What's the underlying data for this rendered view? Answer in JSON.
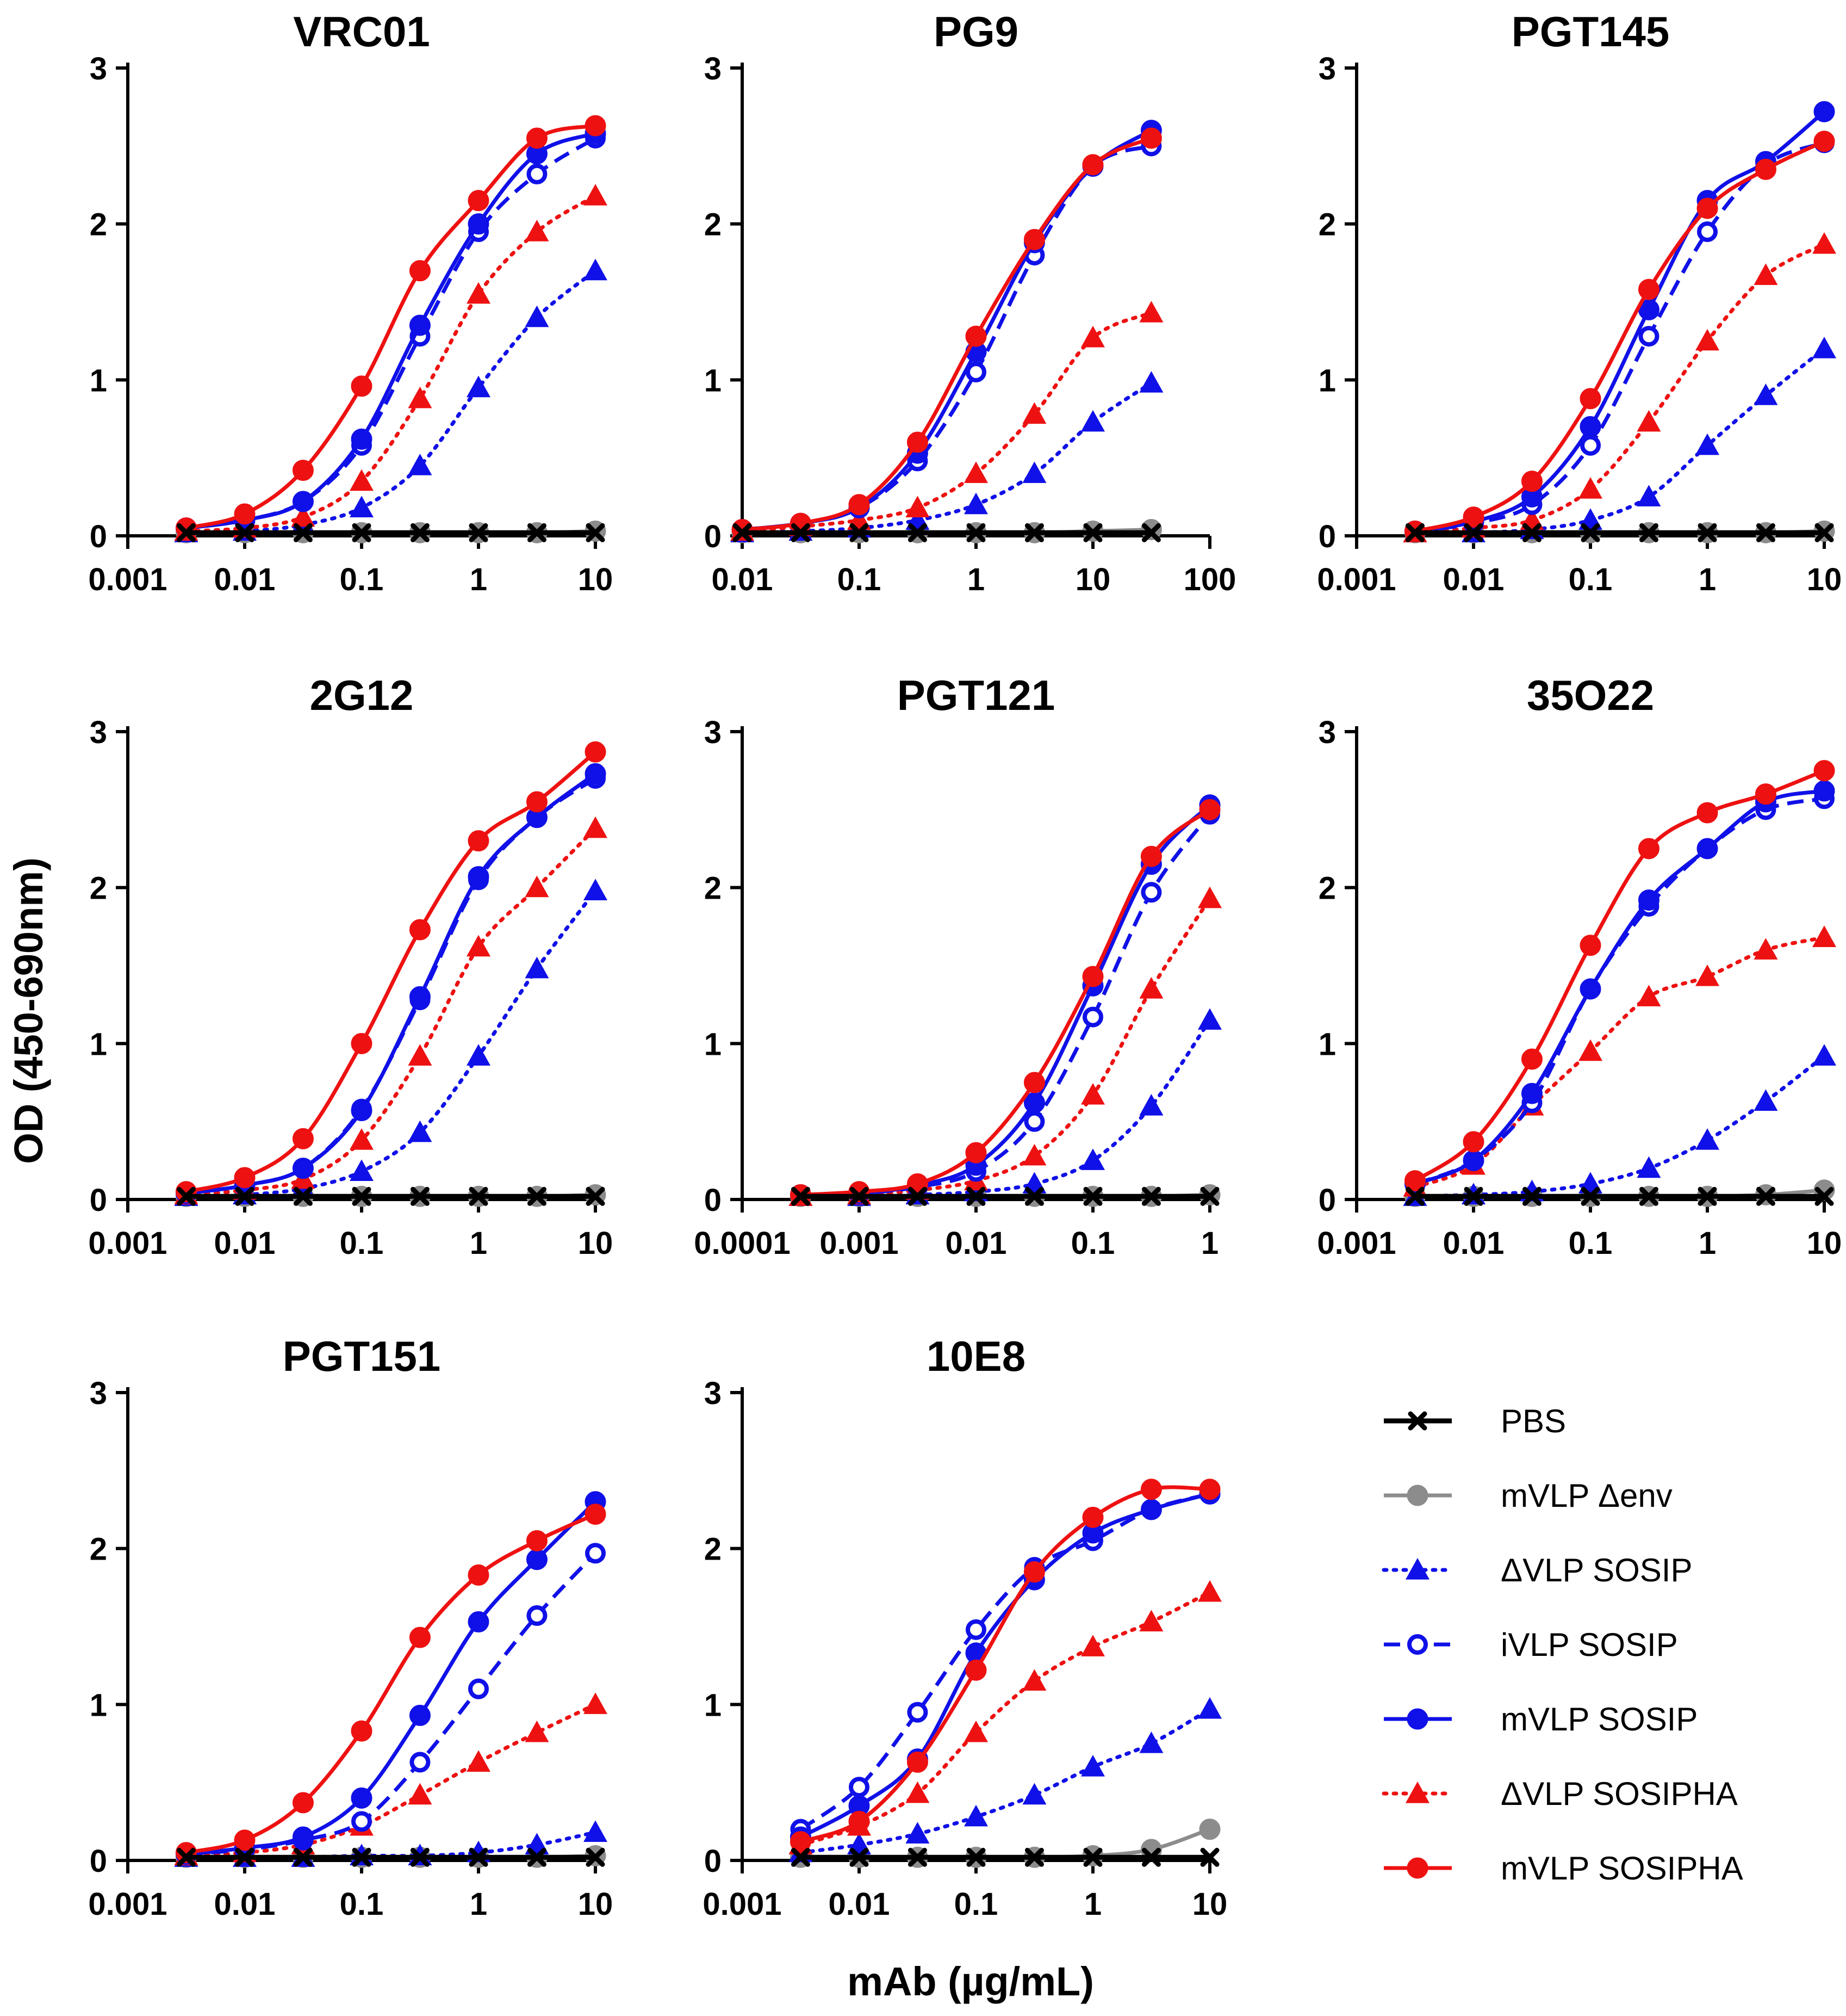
{
  "figure": {
    "ylabel": "OD (450-690nm)",
    "xlabel": "mAb (µg/mL)"
  },
  "legend": [
    {
      "key": "pbs",
      "label": "PBS"
    },
    {
      "key": "mvlp_denv",
      "label": "mVLP Δenv"
    },
    {
      "key": "dvlp_sosip",
      "label": "ΔVLP SOSIP"
    },
    {
      "key": "ivlp_sosip",
      "label": "iVLP SOSIP"
    },
    {
      "key": "mvlp_sosip",
      "label": "mVLP SOSIP"
    },
    {
      "key": "dvlp_sosipha",
      "label": "ΔVLP SOSIPHA"
    },
    {
      "key": "mvlp_sosipha",
      "label": "mVLP SOSIPHA"
    }
  ],
  "styles": {
    "pbs": {
      "color": "#000000",
      "marker": "x",
      "dash": "solid"
    },
    "mvlp_denv": {
      "color": "#8c8c8c",
      "marker": "circle",
      "dash": "solid"
    },
    "dvlp_sosip": {
      "color": "#1010e8",
      "marker": "triangle",
      "dash": "dotted"
    },
    "ivlp_sosip": {
      "color": "#1010e8",
      "marker": "open-circle",
      "dash": "dashed"
    },
    "mvlp_sosip": {
      "color": "#1010e8",
      "marker": "circle",
      "dash": "solid"
    },
    "dvlp_sosipha": {
      "color": "#ee1111",
      "marker": "triangle",
      "dash": "dotted"
    },
    "mvlp_sosipha": {
      "color": "#ee1111",
      "marker": "circle",
      "dash": "solid"
    }
  },
  "chart_data": [
    {
      "type": "line",
      "title": "VRC01",
      "x_scale": "log",
      "xticks": [
        "0.001",
        "0.01",
        "0.1",
        "1",
        "10"
      ],
      "xlim": [
        0.001,
        10
      ],
      "yticks": [
        "0",
        "1",
        "2",
        "3"
      ],
      "ylim": [
        0,
        3
      ],
      "x": [
        0.00316,
        0.01,
        0.0316,
        0.1,
        0.316,
        1,
        3.16,
        10
      ],
      "series": [
        {
          "key": "pbs",
          "values": [
            0.02,
            0.02,
            0.02,
            0.02,
            0.02,
            0.02,
            0.02,
            0.02
          ]
        },
        {
          "key": "mvlp_denv",
          "values": [
            0.02,
            0.02,
            0.02,
            0.02,
            0.02,
            0.02,
            0.02,
            0.03
          ]
        },
        {
          "key": "dvlp_sosip",
          "values": [
            0.02,
            0.03,
            0.07,
            0.18,
            0.45,
            0.95,
            1.4,
            1.7
          ]
        },
        {
          "key": "ivlp_sosip",
          "values": [
            0.05,
            0.1,
            0.22,
            0.58,
            1.28,
            1.95,
            2.32,
            2.55
          ]
        },
        {
          "key": "mvlp_sosip",
          "values": [
            0.05,
            0.1,
            0.22,
            0.62,
            1.35,
            2.0,
            2.45,
            2.58
          ]
        },
        {
          "key": "dvlp_sosipha",
          "values": [
            0.03,
            0.05,
            0.12,
            0.35,
            0.88,
            1.55,
            1.95,
            2.18
          ]
        },
        {
          "key": "mvlp_sosipha",
          "values": [
            0.05,
            0.14,
            0.42,
            0.96,
            1.7,
            2.15,
            2.55,
            2.63
          ]
        }
      ]
    },
    {
      "type": "line",
      "title": "PG9",
      "x_scale": "log",
      "xticks": [
        "0.01",
        "0.1",
        "1",
        "10",
        "100"
      ],
      "xlim": [
        0.01,
        100
      ],
      "yticks": [
        "0",
        "1",
        "2",
        "3"
      ],
      "ylim": [
        0,
        3
      ],
      "x": [
        0.01,
        0.0316,
        0.1,
        0.316,
        1,
        3.16,
        10,
        31.6
      ],
      "series": [
        {
          "key": "pbs",
          "values": [
            0.02,
            0.02,
            0.02,
            0.02,
            0.02,
            0.02,
            0.02,
            0.02
          ]
        },
        {
          "key": "mvlp_denv",
          "values": [
            0.02,
            0.02,
            0.02,
            0.02,
            0.02,
            0.02,
            0.03,
            0.04
          ]
        },
        {
          "key": "dvlp_sosip",
          "values": [
            0.02,
            0.03,
            0.05,
            0.1,
            0.2,
            0.4,
            0.73,
            0.98
          ]
        },
        {
          "key": "ivlp_sosip",
          "values": [
            0.04,
            0.08,
            0.18,
            0.48,
            1.05,
            1.8,
            2.37,
            2.5
          ]
        },
        {
          "key": "mvlp_sosip",
          "values": [
            0.04,
            0.08,
            0.18,
            0.53,
            1.18,
            1.88,
            2.37,
            2.6
          ]
        },
        {
          "key": "dvlp_sosipha",
          "values": [
            0.03,
            0.06,
            0.1,
            0.18,
            0.4,
            0.78,
            1.27,
            1.43
          ]
        },
        {
          "key": "mvlp_sosipha",
          "values": [
            0.04,
            0.08,
            0.2,
            0.6,
            1.28,
            1.9,
            2.38,
            2.55
          ]
        }
      ]
    },
    {
      "type": "line",
      "title": "PGT145",
      "x_scale": "log",
      "xticks": [
        "0.001",
        "0.01",
        "0.1",
        "1",
        "10"
      ],
      "xlim": [
        0.001,
        10
      ],
      "yticks": [
        "0",
        "1",
        "2",
        "3"
      ],
      "ylim": [
        0,
        3
      ],
      "x": [
        0.00316,
        0.01,
        0.0316,
        0.1,
        0.316,
        1,
        3.16,
        10
      ],
      "series": [
        {
          "key": "pbs",
          "values": [
            0.02,
            0.02,
            0.02,
            0.02,
            0.02,
            0.02,
            0.02,
            0.02
          ]
        },
        {
          "key": "mvlp_denv",
          "values": [
            0.02,
            0.02,
            0.02,
            0.02,
            0.02,
            0.02,
            0.02,
            0.03
          ]
        },
        {
          "key": "dvlp_sosip",
          "values": [
            0.02,
            0.02,
            0.04,
            0.1,
            0.25,
            0.58,
            0.9,
            1.2
          ]
        },
        {
          "key": "ivlp_sosip",
          "values": [
            0.03,
            0.08,
            0.2,
            0.58,
            1.28,
            1.95,
            2.38,
            2.52
          ]
        },
        {
          "key": "mvlp_sosip",
          "values": [
            0.03,
            0.09,
            0.25,
            0.7,
            1.45,
            2.15,
            2.4,
            2.72
          ]
        },
        {
          "key": "dvlp_sosipha",
          "values": [
            0.02,
            0.05,
            0.1,
            0.3,
            0.73,
            1.25,
            1.67,
            1.87
          ]
        },
        {
          "key": "mvlp_sosipha",
          "values": [
            0.03,
            0.12,
            0.35,
            0.88,
            1.58,
            2.1,
            2.35,
            2.53
          ]
        }
      ]
    },
    {
      "type": "line",
      "title": "2G12",
      "x_scale": "log",
      "xticks": [
        "0.001",
        "0.01",
        "0.1",
        "1",
        "10"
      ],
      "xlim": [
        0.001,
        10
      ],
      "yticks": [
        "0",
        "1",
        "2",
        "3"
      ],
      "ylim": [
        0,
        3
      ],
      "x": [
        0.00316,
        0.01,
        0.0316,
        0.1,
        0.316,
        1,
        3.16,
        10
      ],
      "series": [
        {
          "key": "pbs",
          "values": [
            0.02,
            0.02,
            0.02,
            0.02,
            0.02,
            0.02,
            0.02,
            0.02
          ]
        },
        {
          "key": "mvlp_denv",
          "values": [
            0.02,
            0.02,
            0.02,
            0.02,
            0.02,
            0.02,
            0.02,
            0.03
          ]
        },
        {
          "key": "dvlp_sosip",
          "values": [
            0.02,
            0.03,
            0.07,
            0.18,
            0.43,
            0.92,
            1.48,
            1.98
          ]
        },
        {
          "key": "ivlp_sosip",
          "values": [
            0.04,
            0.09,
            0.2,
            0.58,
            1.28,
            2.05,
            2.45,
            2.7
          ]
        },
        {
          "key": "mvlp_sosip",
          "values": [
            0.04,
            0.09,
            0.2,
            0.57,
            1.3,
            2.07,
            2.45,
            2.73
          ]
        },
        {
          "key": "dvlp_sosipha",
          "values": [
            0.03,
            0.06,
            0.13,
            0.38,
            0.92,
            1.62,
            2.0,
            2.38
          ]
        },
        {
          "key": "mvlp_sosipha",
          "values": [
            0.05,
            0.14,
            0.39,
            1.0,
            1.73,
            2.3,
            2.55,
            2.87
          ]
        }
      ]
    },
    {
      "type": "line",
      "title": "PGT121",
      "x_scale": "log",
      "xticks": [
        "0.0001",
        "0.001",
        "0.01",
        "0.1",
        "1"
      ],
      "xlim": [
        0.0001,
        1
      ],
      "yticks": [
        "0",
        "1",
        "2",
        "3"
      ],
      "ylim": [
        0,
        3
      ],
      "x": [
        0.000316,
        0.001,
        0.00316,
        0.01,
        0.0316,
        0.1,
        0.316,
        1
      ],
      "series": [
        {
          "key": "pbs",
          "values": [
            0.02,
            0.02,
            0.02,
            0.02,
            0.02,
            0.02,
            0.02,
            0.02
          ]
        },
        {
          "key": "mvlp_denv",
          "values": [
            0.02,
            0.02,
            0.02,
            0.02,
            0.02,
            0.02,
            0.02,
            0.03
          ]
        },
        {
          "key": "dvlp_sosip",
          "values": [
            0.02,
            0.02,
            0.03,
            0.05,
            0.1,
            0.25,
            0.6,
            1.15
          ]
        },
        {
          "key": "ivlp_sosip",
          "values": [
            0.03,
            0.04,
            0.08,
            0.18,
            0.5,
            1.17,
            1.97,
            2.47
          ]
        },
        {
          "key": "mvlp_sosip",
          "values": [
            0.03,
            0.04,
            0.09,
            0.22,
            0.62,
            1.37,
            2.15,
            2.53
          ]
        },
        {
          "key": "dvlp_sosipha",
          "values": [
            0.02,
            0.03,
            0.06,
            0.12,
            0.28,
            0.67,
            1.35,
            1.93
          ]
        },
        {
          "key": "mvlp_sosipha",
          "values": [
            0.03,
            0.05,
            0.1,
            0.3,
            0.75,
            1.43,
            2.2,
            2.5
          ]
        }
      ]
    },
    {
      "type": "line",
      "title": "35O22",
      "x_scale": "log",
      "xticks": [
        "0.001",
        "0.01",
        "0.1",
        "1",
        "10"
      ],
      "xlim": [
        0.001,
        10
      ],
      "yticks": [
        "0",
        "1",
        "2",
        "3"
      ],
      "ylim": [
        0,
        3
      ],
      "x": [
        0.00316,
        0.01,
        0.0316,
        0.1,
        0.316,
        1,
        3.16,
        10
      ],
      "series": [
        {
          "key": "pbs",
          "values": [
            0.02,
            0.02,
            0.02,
            0.02,
            0.02,
            0.02,
            0.02,
            0.02
          ]
        },
        {
          "key": "mvlp_denv",
          "values": [
            0.02,
            0.02,
            0.02,
            0.02,
            0.02,
            0.02,
            0.03,
            0.06
          ]
        },
        {
          "key": "dvlp_sosip",
          "values": [
            0.02,
            0.03,
            0.05,
            0.1,
            0.2,
            0.38,
            0.63,
            0.92
          ]
        },
        {
          "key": "ivlp_sosip",
          "values": [
            0.1,
            0.25,
            0.62,
            1.35,
            1.88,
            2.25,
            2.5,
            2.57
          ]
        },
        {
          "key": "mvlp_sosip",
          "values": [
            0.1,
            0.25,
            0.68,
            1.35,
            1.92,
            2.25,
            2.55,
            2.62
          ]
        },
        {
          "key": "dvlp_sosipha",
          "values": [
            0.08,
            0.22,
            0.6,
            0.95,
            1.3,
            1.43,
            1.6,
            1.68
          ]
        },
        {
          "key": "mvlp_sosipha",
          "values": [
            0.12,
            0.37,
            0.9,
            1.63,
            2.25,
            2.48,
            2.6,
            2.75
          ]
        }
      ]
    },
    {
      "type": "line",
      "title": "PGT151",
      "x_scale": "log",
      "xticks": [
        "0.001",
        "0.01",
        "0.1",
        "1",
        "10"
      ],
      "xlim": [
        0.001,
        10
      ],
      "yticks": [
        "0",
        "1",
        "2",
        "3"
      ],
      "ylim": [
        0,
        3
      ],
      "x": [
        0.00316,
        0.01,
        0.0316,
        0.1,
        0.316,
        1,
        3.16,
        10
      ],
      "series": [
        {
          "key": "pbs",
          "values": [
            0.02,
            0.02,
            0.02,
            0.02,
            0.02,
            0.02,
            0.02,
            0.02
          ]
        },
        {
          "key": "mvlp_denv",
          "values": [
            0.02,
            0.02,
            0.02,
            0.02,
            0.02,
            0.02,
            0.02,
            0.03
          ]
        },
        {
          "key": "dvlp_sosip",
          "values": [
            0.02,
            0.02,
            0.02,
            0.03,
            0.03,
            0.05,
            0.1,
            0.18
          ]
        },
        {
          "key": "ivlp_sosip",
          "values": [
            0.04,
            0.07,
            0.13,
            0.25,
            0.63,
            1.1,
            1.57,
            1.97
          ]
        },
        {
          "key": "mvlp_sosip",
          "values": [
            0.04,
            0.08,
            0.15,
            0.4,
            0.93,
            1.53,
            1.93,
            2.3
          ]
        },
        {
          "key": "dvlp_sosipha",
          "values": [
            0.03,
            0.05,
            0.1,
            0.22,
            0.42,
            0.63,
            0.82,
            1.0
          ]
        },
        {
          "key": "mvlp_sosipha",
          "values": [
            0.05,
            0.13,
            0.37,
            0.83,
            1.43,
            1.83,
            2.05,
            2.22
          ]
        }
      ]
    },
    {
      "type": "line",
      "title": "10E8",
      "x_scale": "log",
      "xticks": [
        "0.001",
        "0.01",
        "0.1",
        "1",
        "10"
      ],
      "xlim": [
        0.001,
        10
      ],
      "yticks": [
        "0",
        "1",
        "2",
        "3"
      ],
      "ylim": [
        0,
        3
      ],
      "x": [
        0.00316,
        0.01,
        0.0316,
        0.1,
        0.316,
        1,
        3.16,
        10
      ],
      "series": [
        {
          "key": "pbs",
          "values": [
            0.02,
            0.02,
            0.02,
            0.02,
            0.02,
            0.02,
            0.02,
            0.02
          ]
        },
        {
          "key": "mvlp_denv",
          "values": [
            0.02,
            0.02,
            0.02,
            0.02,
            0.02,
            0.03,
            0.07,
            0.2
          ]
        },
        {
          "key": "dvlp_sosip",
          "values": [
            0.05,
            0.1,
            0.17,
            0.28,
            0.42,
            0.6,
            0.75,
            0.97
          ]
        },
        {
          "key": "ivlp_sosip",
          "values": [
            0.2,
            0.47,
            0.95,
            1.48,
            1.88,
            2.05,
            2.25,
            2.35
          ]
        },
        {
          "key": "mvlp_sosip",
          "values": [
            0.15,
            0.35,
            0.65,
            1.33,
            1.8,
            2.1,
            2.25,
            2.35
          ]
        },
        {
          "key": "dvlp_sosipha",
          "values": [
            0.1,
            0.22,
            0.43,
            0.82,
            1.15,
            1.37,
            1.53,
            1.72
          ]
        },
        {
          "key": "mvlp_sosipha",
          "values": [
            0.12,
            0.25,
            0.63,
            1.22,
            1.85,
            2.2,
            2.38,
            2.38
          ]
        }
      ]
    }
  ]
}
